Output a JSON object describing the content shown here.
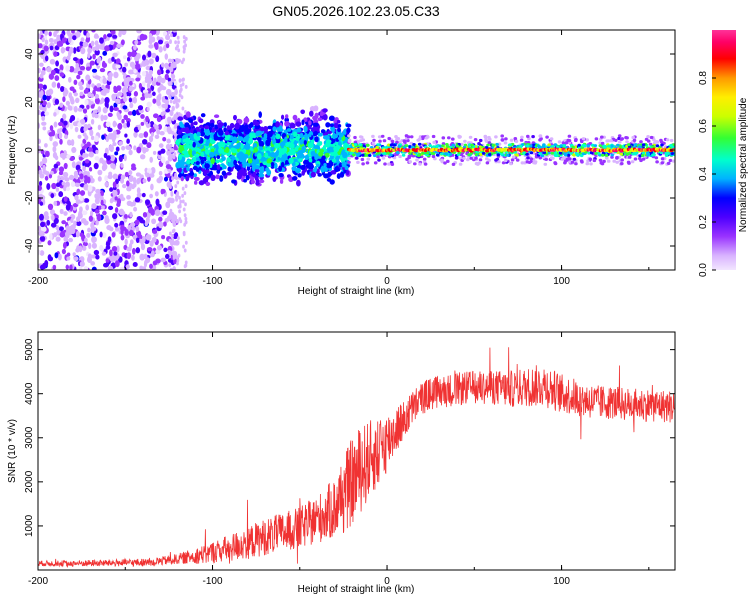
{
  "figure_title": "GN05.2026.102.23.05.C33",
  "chart_data": [
    {
      "type": "heatmap",
      "title": "GN05.2026.102.23.05.C33",
      "xlabel": "Height of straight line (km)",
      "ylabel": "Frequency (Hz)",
      "xlim": [
        -200,
        165
      ],
      "ylim": [
        -50,
        50
      ],
      "xticks": [
        -200,
        -100,
        0,
        100
      ],
      "yticks": [
        -40,
        -20,
        0,
        20,
        40
      ],
      "xtick_labels": [
        "-200",
        "-100",
        "0",
        "100"
      ],
      "ytick_labels": [
        "-40",
        "-20",
        "0",
        "20",
        "40"
      ],
      "colorbar": {
        "label": "Normalized spectral amplitude",
        "range": [
          0,
          1
        ],
        "ticks": [
          0.0,
          0.2,
          0.4,
          0.6,
          0.8
        ],
        "tick_labels": [
          "0.0",
          "0.2",
          "0.4",
          "0.6",
          "0.8"
        ],
        "colors": [
          "#f2e6ff",
          "#d9b3ff",
          "#9933ff",
          "#4d00ff",
          "#0000ff",
          "#00b3ff",
          "#00ffcc",
          "#33ff33",
          "#ccff00",
          "#ffee00",
          "#ff9900",
          "#ff0000",
          "#ff0066",
          "#ff3399"
        ]
      },
      "regions": [
        {
          "name": "noise",
          "x": [
            -200,
            -120
          ],
          "freq_spread": 50,
          "amplitude": 0.3
        },
        {
          "name": "onset",
          "x": [
            -120,
            -22
          ],
          "freq_spread": 15,
          "amplitude": 0.5
        },
        {
          "name": "tone",
          "x": [
            -22,
            165
          ],
          "center_freq": 0,
          "freq_spread": 3,
          "amplitude": 0.95
        }
      ]
    },
    {
      "type": "line",
      "xlabel": "Height of straight line (km)",
      "ylabel": "SNR (10 * v/v)",
      "xlim": [
        -200,
        165
      ],
      "ylim": [
        0,
        5400
      ],
      "xticks": [
        -200,
        -100,
        0,
        100
      ],
      "yticks": [
        1000,
        2000,
        3000,
        4000,
        5000
      ],
      "xtick_labels": [
        "-200",
        "-100",
        "0",
        "100"
      ],
      "ytick_labels": [
        "1000",
        "2000",
        "3000",
        "4000",
        "5000"
      ],
      "color": "#f03232",
      "series": [
        {
          "name": "SNR",
          "x": [
            -200,
            -180,
            -160,
            -140,
            -130,
            -120,
            -110,
            -100,
            -90,
            -80,
            -70,
            -60,
            -50,
            -40,
            -30,
            -25,
            -20,
            -15,
            -10,
            -5,
            0,
            5,
            10,
            15,
            20,
            25,
            30,
            40,
            50,
            60,
            70,
            80,
            90,
            100,
            110,
            120,
            130,
            140,
            150,
            165
          ],
          "values": [
            150,
            150,
            160,
            170,
            200,
            250,
            320,
            400,
            500,
            620,
            750,
            850,
            950,
            1150,
            1400,
            1700,
            2000,
            2300,
            2500,
            2700,
            2900,
            3200,
            3400,
            3700,
            3900,
            4000,
            4050,
            4100,
            4150,
            4150,
            4100,
            4150,
            4200,
            4000,
            3900,
            3800,
            3800,
            3750,
            3750,
            3700
          ],
          "noise": [
            60,
            70,
            80,
            90,
            100,
            120,
            180,
            250,
            320,
            380,
            420,
            450,
            480,
            550,
            700,
            900,
            1000,
            1000,
            900,
            800,
            700,
            550,
            450,
            400,
            380,
            380,
            380,
            380,
            380,
            400,
            420,
            450,
            500,
            450,
            420,
            400,
            380,
            380,
            380,
            380
          ]
        }
      ]
    }
  ]
}
